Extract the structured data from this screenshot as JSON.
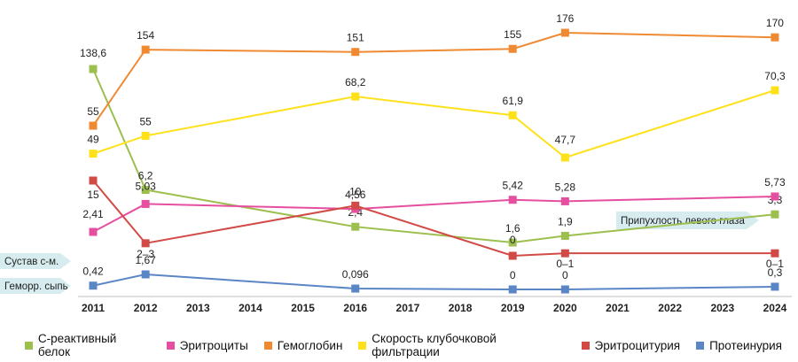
{
  "chart_data": {
    "type": "line",
    "x": [
      "2011",
      "2012",
      "2013",
      "2014",
      "2015",
      "2016",
      "2017",
      "2018",
      "2019",
      "2020",
      "2021",
      "2022",
      "2023",
      "2024"
    ],
    "series": [
      {
        "name": "С-реактивный белок",
        "color": "#9cbf4e",
        "points": [
          [
            2011,
            138.6
          ],
          [
            2012,
            6.2
          ],
          [
            2016,
            2.4
          ],
          [
            2019,
            1.6
          ],
          [
            2020,
            1.9
          ],
          [
            2024,
            3.3
          ]
        ],
        "labels": [
          "138,6",
          "6,2",
          "2,4",
          "1,6",
          "1,9",
          "3,3"
        ]
      },
      {
        "name": "Эритроциты",
        "color": "#e64fa0",
        "points": [
          [
            2011,
            2.41
          ],
          [
            2012,
            5.03
          ],
          [
            2016,
            4.56
          ],
          [
            2019,
            5.42
          ],
          [
            2020,
            5.28
          ],
          [
            2024,
            5.73
          ]
        ],
        "labels": [
          "2,41",
          "5,03",
          "4,56",
          "5,42",
          "5,28",
          "5,73"
        ]
      },
      {
        "name": "Гемоглобин",
        "color": "#ef8a33",
        "points": [
          [
            2011,
            55
          ],
          [
            2012,
            154
          ],
          [
            2016,
            151
          ],
          [
            2019,
            155
          ],
          [
            2020,
            176
          ],
          [
            2024,
            170
          ]
        ],
        "labels": [
          "55",
          "154",
          "151",
          "155",
          "176",
          "170"
        ]
      },
      {
        "name": "Скорость клубочковой фильтрации",
        "color": "#ffe11a",
        "points": [
          [
            2011,
            49
          ],
          [
            2012,
            55
          ],
          [
            2016,
            68.2
          ],
          [
            2019,
            61.9
          ],
          [
            2020,
            47.7
          ],
          [
            2024,
            70.3
          ]
        ],
        "labels": [
          "49",
          "55",
          "68,2",
          "61,9",
          "47,7",
          "70,3"
        ]
      },
      {
        "name": "Эритроцитурия",
        "color": "#d24a45",
        "points": [
          [
            2011,
            15
          ],
          [
            2012,
            "2–3"
          ],
          [
            2016,
            10
          ],
          [
            2019,
            0
          ],
          [
            2020,
            "0–1"
          ],
          [
            2024,
            "0–1"
          ]
        ],
        "labels": [
          "15",
          "2–3",
          "10",
          "0",
          "0–1",
          "0–1"
        ]
      },
      {
        "name": "Протеинурия",
        "color": "#5b86c5",
        "points": [
          [
            2011,
            0.42
          ],
          [
            2012,
            1.67
          ],
          [
            2016,
            0.096
          ],
          [
            2019,
            0
          ],
          [
            2020,
            0
          ],
          [
            2024,
            0.3
          ]
        ],
        "labels": [
          "0,42",
          "1,67",
          "0,096",
          "0",
          "0",
          "0,3"
        ]
      }
    ],
    "annotations": [
      {
        "text": "Сустав с-м.",
        "year": 2011
      },
      {
        "text": "Геморр. сыпь",
        "year": 2011
      },
      {
        "text": "Припухлость левого глаза",
        "year": 2020
      }
    ],
    "legend_position": "bottom",
    "grid": false
  }
}
